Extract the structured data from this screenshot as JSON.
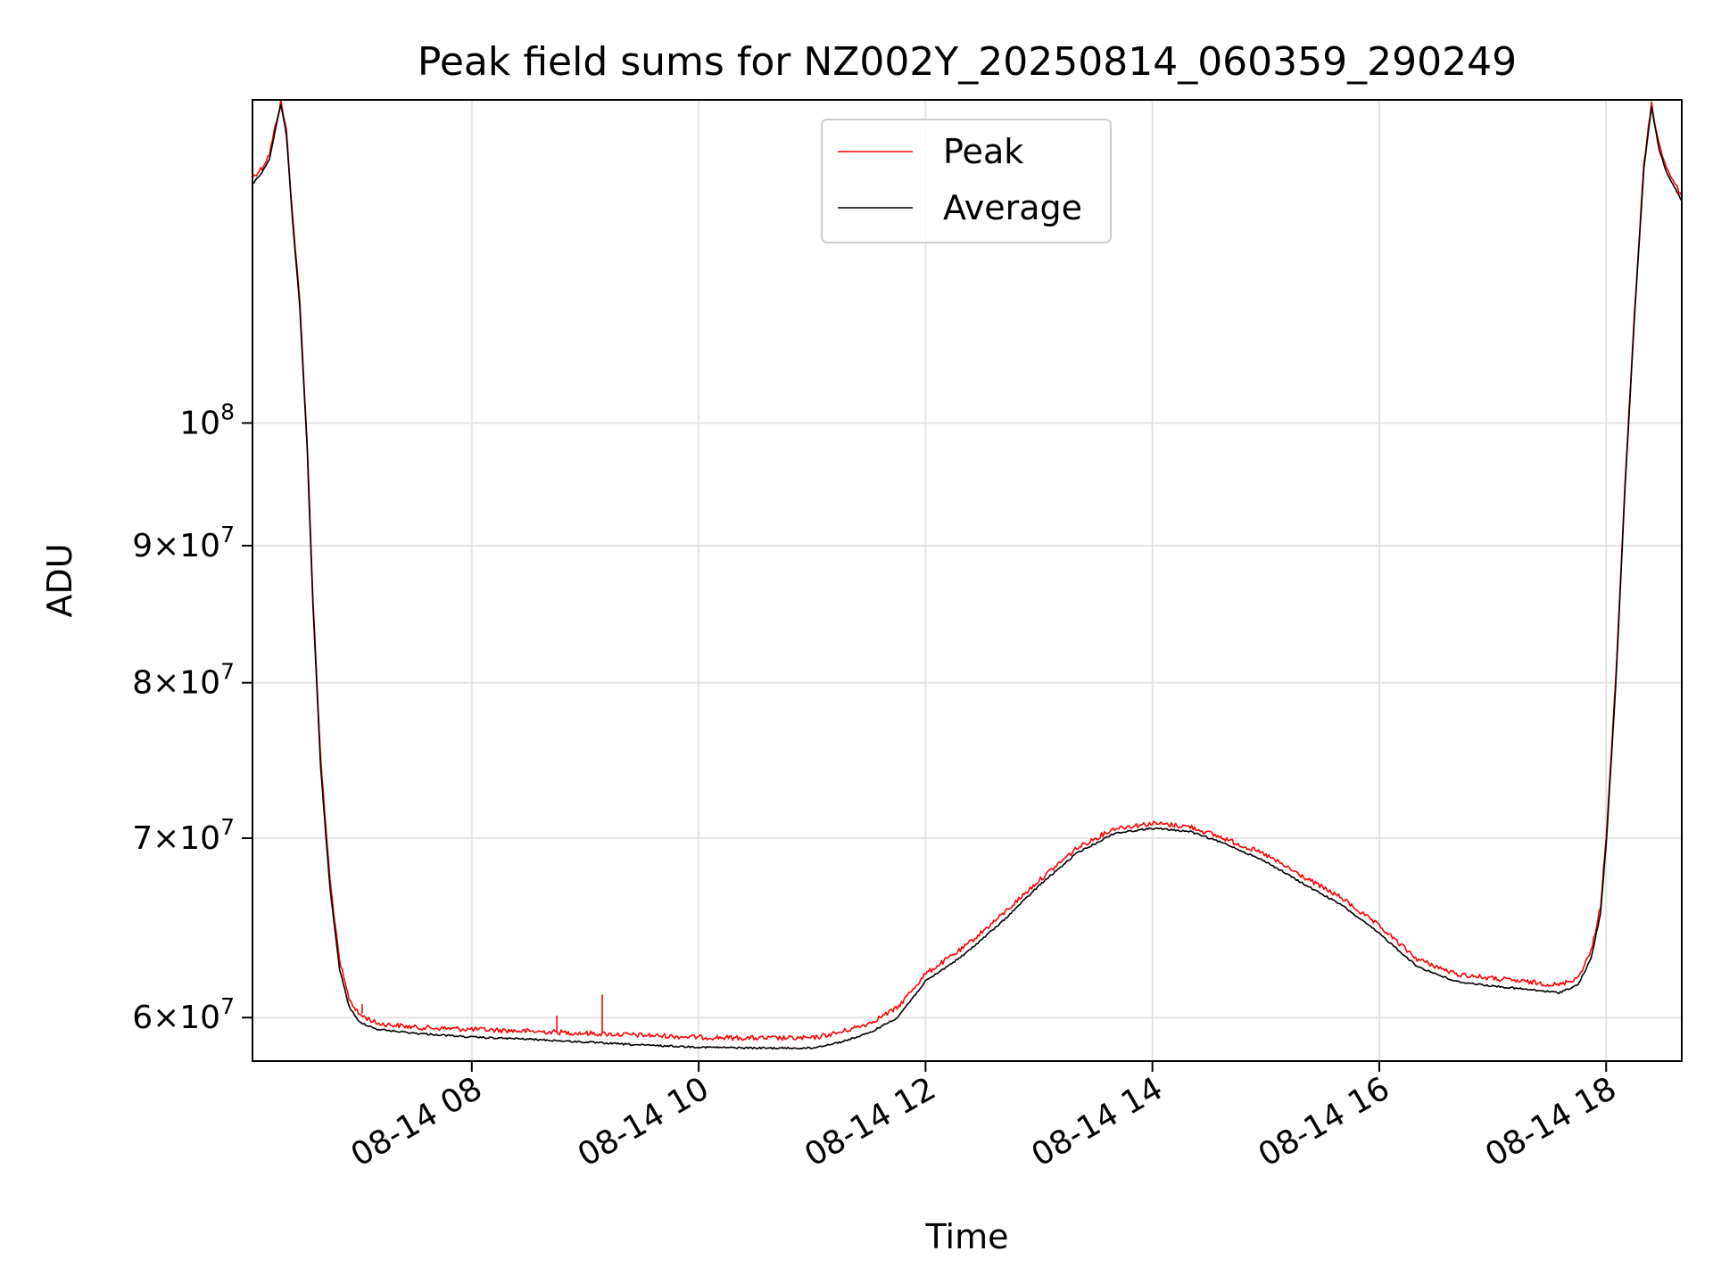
{
  "chart_data": {
    "type": "line",
    "title": "Peak field sums for NZ002Y_20250814_060359_290249",
    "xlabel": "Time",
    "ylabel": "ADU",
    "x_axis": {
      "type": "time",
      "range": [
        "2025-08-14 06:04",
        "2025-08-14 18:40"
      ],
      "ticks": [
        "2025-08-14 08:00",
        "2025-08-14 10:00",
        "2025-08-14 12:00",
        "2025-08-14 14:00",
        "2025-08-14 16:00",
        "2025-08-14 18:00"
      ],
      "tick_labels": [
        "08-14 08",
        "08-14 10",
        "08-14 12",
        "08-14 14",
        "08-14 16",
        "08-14 18"
      ],
      "tick_label_rotation": "30 degrees"
    },
    "y_axis": {
      "scale": "log",
      "range": [
        57800000,
        132000000
      ],
      "ticks": [
        60000000,
        70000000,
        80000000,
        90000000,
        100000000
      ],
      "tick_labels": [
        {
          "mantissa": "6",
          "exponent": "7"
        },
        {
          "mantissa": "7",
          "exponent": "7"
        },
        {
          "mantissa": "8",
          "exponent": "7"
        },
        {
          "mantissa": "9",
          "exponent": "7"
        },
        {
          "mantissa": "",
          "exponent": "8"
        }
      ],
      "times_sign": "×",
      "base": "10"
    },
    "grid": true,
    "legend": {
      "placement": "upper center",
      "entries": [
        {
          "label": "Peak",
          "color": "#ff0000"
        },
        {
          "label": "Average",
          "color": "#000000"
        }
      ]
    },
    "series": [
      {
        "name": "Peak",
        "color": "#ff0000",
        "style": "noisy line, slightly above Average",
        "points": [
          [
            "2025-08-14 06:04",
            123500000
          ],
          [
            "2025-08-14 06:09",
            124500000
          ],
          [
            "2025-08-14 06:13",
            126000000
          ],
          [
            "2025-08-14 06:16",
            129000000
          ],
          [
            "2025-08-14 06:19",
            131800000
          ],
          [
            "2025-08-14 06:22",
            128500000
          ],
          [
            "2025-08-14 06:25",
            120000000
          ],
          [
            "2025-08-14 06:29",
            111000000
          ],
          [
            "2025-08-14 06:33",
            98000000
          ],
          [
            "2025-08-14 06:36",
            86000000
          ],
          [
            "2025-08-14 06:40",
            75000000
          ],
          [
            "2025-08-14 06:45",
            67500000
          ],
          [
            "2025-08-14 06:50",
            63000000
          ],
          [
            "2025-08-14 06:55",
            61000000
          ],
          [
            "2025-08-14 07:00",
            60200000
          ],
          [
            "2025-08-14 07:10",
            59700000
          ],
          [
            "2025-08-14 07:30",
            59500000
          ],
          [
            "2025-08-14 08:00",
            59400000
          ],
          [
            "2025-08-14 08:30",
            59300000
          ],
          [
            "2025-08-14 09:00",
            59200000
          ],
          [
            "2025-08-14 09:30",
            59100000
          ],
          [
            "2025-08-14 10:00",
            59000000
          ],
          [
            "2025-08-14 10:30",
            58950000
          ],
          [
            "2025-08-14 11:00",
            58950000
          ],
          [
            "2025-08-14 11:15",
            59250000
          ],
          [
            "2025-08-14 11:30",
            59700000
          ],
          [
            "2025-08-14 11:45",
            60500000
          ],
          [
            "2025-08-14 12:00",
            62300000
          ],
          [
            "2025-08-14 12:20",
            63700000
          ],
          [
            "2025-08-14 12:40",
            65500000
          ],
          [
            "2025-08-14 13:00",
            67500000
          ],
          [
            "2025-08-14 13:20",
            69400000
          ],
          [
            "2025-08-14 13:40",
            70600000
          ],
          [
            "2025-08-14 14:00",
            70900000
          ],
          [
            "2025-08-14 14:20",
            70700000
          ],
          [
            "2025-08-14 14:40",
            69900000
          ],
          [
            "2025-08-14 15:00",
            69000000
          ],
          [
            "2025-08-14 15:20",
            67700000
          ],
          [
            "2025-08-14 15:40",
            66500000
          ],
          [
            "2025-08-14 16:00",
            64900000
          ],
          [
            "2025-08-14 16:20",
            63100000
          ],
          [
            "2025-08-14 16:40",
            62300000
          ],
          [
            "2025-08-14 17:00",
            62050000
          ],
          [
            "2025-08-14 17:20",
            61850000
          ],
          [
            "2025-08-14 17:35",
            61700000
          ],
          [
            "2025-08-14 17:45",
            62100000
          ],
          [
            "2025-08-14 17:52",
            63500000
          ],
          [
            "2025-08-14 17:57",
            66000000
          ],
          [
            "2025-08-14 18:00",
            70000000
          ],
          [
            "2025-08-14 18:05",
            80000000
          ],
          [
            "2025-08-14 18:10",
            95000000
          ],
          [
            "2025-08-14 18:15",
            110000000
          ],
          [
            "2025-08-14 18:20",
            125000000
          ],
          [
            "2025-08-14 18:24",
            131500000
          ],
          [
            "2025-08-14 18:28",
            127000000
          ],
          [
            "2025-08-14 18:32",
            124500000
          ],
          [
            "2025-08-14 18:36",
            123000000
          ],
          [
            "2025-08-14 18:40",
            121500000
          ]
        ]
      },
      {
        "name": "Average",
        "color": "#000000",
        "style": "smoother line, slightly below Peak",
        "points": [
          [
            "2025-08-14 06:04",
            122800000
          ],
          [
            "2025-08-14 06:09",
            124000000
          ],
          [
            "2025-08-14 06:13",
            125500000
          ],
          [
            "2025-08-14 06:16",
            128500000
          ],
          [
            "2025-08-14 06:19",
            131500000
          ],
          [
            "2025-08-14 06:22",
            128000000
          ],
          [
            "2025-08-14 06:25",
            119500000
          ],
          [
            "2025-08-14 06:29",
            110500000
          ],
          [
            "2025-08-14 06:33",
            97500000
          ],
          [
            "2025-08-14 06:36",
            85500000
          ],
          [
            "2025-08-14 06:40",
            74500000
          ],
          [
            "2025-08-14 06:45",
            67000000
          ],
          [
            "2025-08-14 06:50",
            62600000
          ],
          [
            "2025-08-14 06:55",
            60600000
          ],
          [
            "2025-08-14 07:00",
            59800000
          ],
          [
            "2025-08-14 07:10",
            59400000
          ],
          [
            "2025-08-14 07:30",
            59200000
          ],
          [
            "2025-08-14 08:00",
            59000000
          ],
          [
            "2025-08-14 08:30",
            58900000
          ],
          [
            "2025-08-14 09:00",
            58750000
          ],
          [
            "2025-08-14 09:30",
            58600000
          ],
          [
            "2025-08-14 10:00",
            58500000
          ],
          [
            "2025-08-14 10:30",
            58450000
          ],
          [
            "2025-08-14 11:00",
            58450000
          ],
          [
            "2025-08-14 11:15",
            58750000
          ],
          [
            "2025-08-14 11:30",
            59200000
          ],
          [
            "2025-08-14 11:45",
            60000000
          ],
          [
            "2025-08-14 12:00",
            61900000
          ],
          [
            "2025-08-14 12:20",
            63300000
          ],
          [
            "2025-08-14 12:40",
            65100000
          ],
          [
            "2025-08-14 13:00",
            67200000
          ],
          [
            "2025-08-14 13:20",
            69100000
          ],
          [
            "2025-08-14 13:40",
            70300000
          ],
          [
            "2025-08-14 14:00",
            70600000
          ],
          [
            "2025-08-14 14:20",
            70400000
          ],
          [
            "2025-08-14 14:40",
            69600000
          ],
          [
            "2025-08-14 15:00",
            68600000
          ],
          [
            "2025-08-14 15:20",
            67300000
          ],
          [
            "2025-08-14 15:40",
            66100000
          ],
          [
            "2025-08-14 16:00",
            64500000
          ],
          [
            "2025-08-14 16:20",
            62700000
          ],
          [
            "2025-08-14 16:40",
            61900000
          ],
          [
            "2025-08-14 17:00",
            61650000
          ],
          [
            "2025-08-14 17:20",
            61450000
          ],
          [
            "2025-08-14 17:35",
            61300000
          ],
          [
            "2025-08-14 17:45",
            61700000
          ],
          [
            "2025-08-14 17:52",
            63100000
          ],
          [
            "2025-08-14 17:57",
            65600000
          ],
          [
            "2025-08-14 18:00",
            69600000
          ],
          [
            "2025-08-14 18:05",
            79600000
          ],
          [
            "2025-08-14 18:10",
            94600000
          ],
          [
            "2025-08-14 18:15",
            109600000
          ],
          [
            "2025-08-14 18:20",
            124600000
          ],
          [
            "2025-08-14 18:24",
            131200000
          ],
          [
            "2025-08-14 18:28",
            126500000
          ],
          [
            "2025-08-14 18:32",
            124000000
          ],
          [
            "2025-08-14 18:36",
            122500000
          ],
          [
            "2025-08-14 18:40",
            121000000
          ]
        ]
      }
    ],
    "spikes": [
      {
        "series": "Peak",
        "x": "2025-08-14 09:09",
        "y": 61200000
      },
      {
        "series": "Peak",
        "x": "2025-08-14 08:45",
        "y": 60100000
      },
      {
        "series": "Peak",
        "x": "2025-08-14 07:02",
        "y": 60700000
      }
    ]
  }
}
